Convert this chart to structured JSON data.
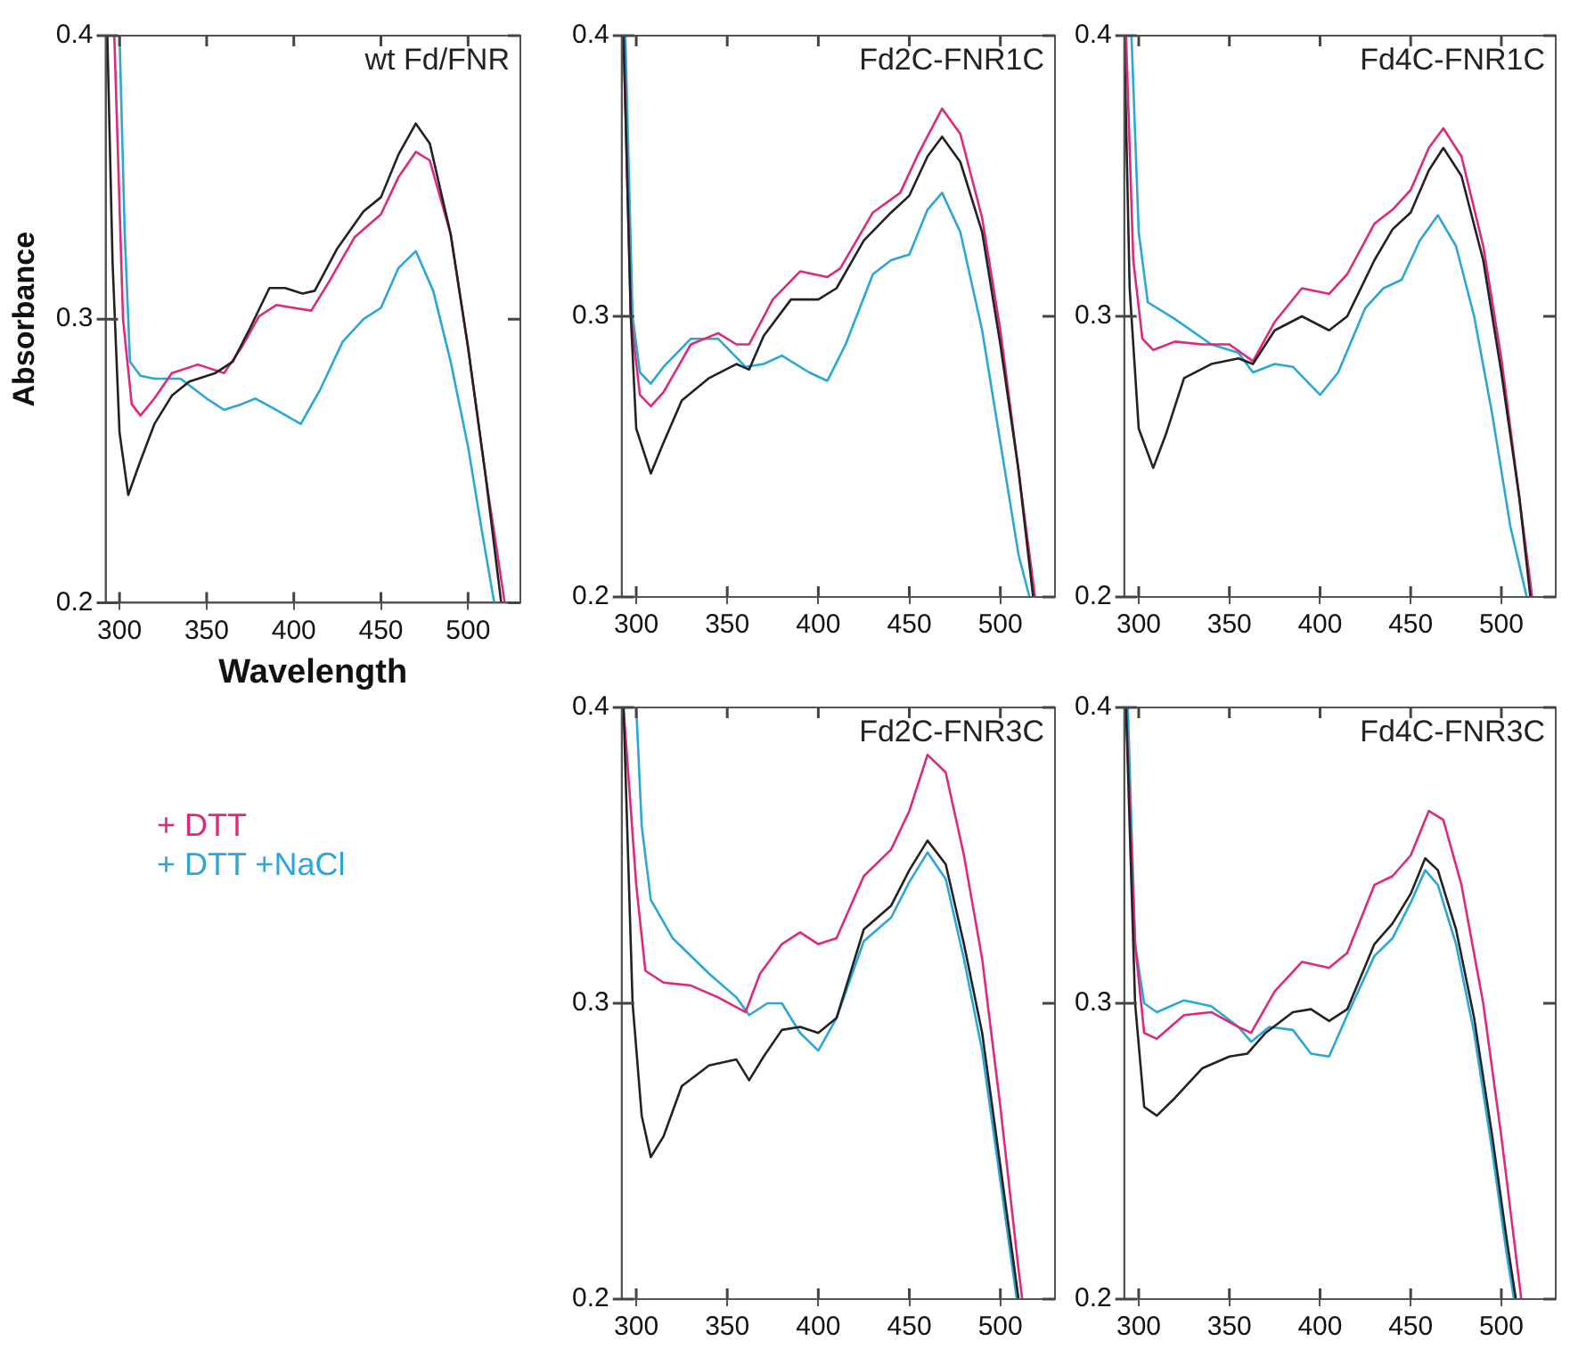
{
  "chart_data": [
    {
      "type": "line",
      "title": "wt Fd/FNR",
      "xlabel": "Wavelength",
      "ylabel": "Absorbance",
      "xlim": [
        292,
        530
      ],
      "xticks": [
        300,
        350,
        400,
        450,
        500
      ],
      "ylim": [
        0.2,
        0.4
      ],
      "yticks": [
        0.2,
        0.3,
        0.4
      ],
      "grid": false,
      "legend": "bottom",
      "series": [
        {
          "color": "#222222",
          "x": [
            293,
            296,
            300,
            305,
            312,
            320,
            330,
            340,
            355,
            365,
            375,
            386,
            395,
            405,
            412,
            425,
            440,
            450,
            460,
            470,
            478,
            490,
            500,
            510,
            519
          ],
          "values": [
            0.4,
            0.32,
            0.26,
            0.238,
            0.25,
            0.263,
            0.273,
            0.278,
            0.281,
            0.285,
            0.297,
            0.311,
            0.311,
            0.309,
            0.31,
            0.325,
            0.338,
            0.343,
            0.358,
            0.369,
            0.362,
            0.33,
            0.29,
            0.245,
            0.2
          ]
        },
        {
          "name": "+ DTT",
          "color": "#e0287a",
          "x": [
            297,
            302,
            307,
            312,
            320,
            330,
            345,
            360,
            370,
            380,
            390,
            400,
            410,
            420,
            435,
            450,
            460,
            470,
            478,
            490,
            500,
            510,
            521
          ],
          "values": [
            0.4,
            0.3,
            0.27,
            0.266,
            0.272,
            0.281,
            0.284,
            0.281,
            0.29,
            0.301,
            0.305,
            0.304,
            0.303,
            0.313,
            0.329,
            0.337,
            0.35,
            0.359,
            0.356,
            0.33,
            0.29,
            0.245,
            0.2
          ]
        },
        {
          "name": "+ DTT +NaCl",
          "color": "#2aa6d8",
          "x": [
            300,
            303,
            306,
            312,
            320,
            335,
            350,
            360,
            370,
            378,
            390,
            404,
            415,
            428,
            440,
            450,
            460,
            470,
            480,
            490,
            500,
            508,
            515
          ],
          "values": [
            0.4,
            0.33,
            0.285,
            0.28,
            0.279,
            0.279,
            0.272,
            0.268,
            0.27,
            0.272,
            0.268,
            0.263,
            0.275,
            0.292,
            0.3,
            0.304,
            0.318,
            0.324,
            0.31,
            0.285,
            0.255,
            0.225,
            0.2
          ]
        }
      ]
    },
    {
      "type": "line",
      "title": "Fd2C-FNR1C",
      "xlim": [
        292,
        530
      ],
      "xticks": [
        300,
        350,
        400,
        450,
        500
      ],
      "ylim": [
        0.2,
        0.4
      ],
      "yticks": [
        0.2,
        0.3,
        0.4
      ],
      "grid": false,
      "series": [
        {
          "color": "#222222",
          "x": [
            293,
            297,
            300,
            308,
            315,
            325,
            340,
            355,
            362,
            370,
            385,
            400,
            410,
            425,
            440,
            450,
            460,
            468,
            478,
            490,
            500,
            510,
            518
          ],
          "values": [
            0.4,
            0.3,
            0.26,
            0.244,
            0.255,
            0.27,
            0.278,
            0.283,
            0.281,
            0.293,
            0.306,
            0.306,
            0.31,
            0.327,
            0.337,
            0.343,
            0.357,
            0.364,
            0.355,
            0.33,
            0.29,
            0.245,
            0.2
          ]
        },
        {
          "color": "#e0287a",
          "x": [
            293,
            297,
            302,
            308,
            315,
            330,
            345,
            355,
            362,
            375,
            390,
            405,
            412,
            430,
            445,
            455,
            468,
            478,
            490,
            500,
            510,
            519
          ],
          "values": [
            0.4,
            0.3,
            0.272,
            0.268,
            0.273,
            0.29,
            0.294,
            0.29,
            0.29,
            0.306,
            0.316,
            0.314,
            0.317,
            0.337,
            0.344,
            0.358,
            0.374,
            0.365,
            0.335,
            0.295,
            0.245,
            0.2
          ]
        },
        {
          "color": "#2aa6d8",
          "x": [
            294,
            298,
            302,
            308,
            315,
            330,
            345,
            360,
            370,
            380,
            395,
            405,
            415,
            430,
            440,
            450,
            460,
            468,
            478,
            490,
            500,
            510,
            516
          ],
          "values": [
            0.4,
            0.3,
            0.28,
            0.276,
            0.282,
            0.292,
            0.292,
            0.282,
            0.283,
            0.286,
            0.28,
            0.277,
            0.29,
            0.315,
            0.32,
            0.322,
            0.338,
            0.344,
            0.33,
            0.295,
            0.255,
            0.215,
            0.2
          ]
        }
      ]
    },
    {
      "type": "line",
      "title": "Fd4C-FNR1C",
      "xlim": [
        292,
        530
      ],
      "xticks": [
        300,
        350,
        400,
        450,
        500
      ],
      "ylim": [
        0.2,
        0.4
      ],
      "yticks": [
        0.2,
        0.3,
        0.4
      ],
      "grid": false,
      "series": [
        {
          "color": "#222222",
          "x": [
            292,
            295,
            300,
            308,
            315,
            325,
            340,
            355,
            363,
            375,
            390,
            405,
            415,
            430,
            440,
            450,
            460,
            468,
            478,
            490,
            500,
            510,
            516
          ],
          "values": [
            0.4,
            0.31,
            0.26,
            0.246,
            0.258,
            0.278,
            0.283,
            0.285,
            0.283,
            0.295,
            0.3,
            0.295,
            0.3,
            0.32,
            0.331,
            0.337,
            0.352,
            0.36,
            0.35,
            0.32,
            0.28,
            0.235,
            0.2
          ]
        },
        {
          "color": "#e0287a",
          "x": [
            293,
            297,
            302,
            308,
            320,
            335,
            350,
            363,
            375,
            390,
            405,
            415,
            430,
            440,
            450,
            460,
            468,
            478,
            490,
            500,
            510,
            517
          ],
          "values": [
            0.4,
            0.32,
            0.292,
            0.288,
            0.291,
            0.29,
            0.29,
            0.284,
            0.298,
            0.31,
            0.308,
            0.315,
            0.333,
            0.338,
            0.345,
            0.36,
            0.367,
            0.357,
            0.325,
            0.285,
            0.235,
            0.2
          ]
        },
        {
          "color": "#2aa6d8",
          "x": [
            296,
            300,
            305,
            320,
            340,
            355,
            363,
            375,
            385,
            400,
            410,
            425,
            435,
            445,
            455,
            465,
            475,
            485,
            495,
            505,
            514
          ],
          "values": [
            0.4,
            0.33,
            0.305,
            0.299,
            0.29,
            0.287,
            0.28,
            0.283,
            0.282,
            0.272,
            0.28,
            0.303,
            0.31,
            0.313,
            0.327,
            0.336,
            0.325,
            0.3,
            0.265,
            0.225,
            0.2
          ]
        }
      ]
    },
    {
      "type": "line",
      "title": "Fd2C-FNR3C",
      "xlim": [
        292,
        530
      ],
      "xticks": [
        300,
        350,
        400,
        450,
        500
      ],
      "ylim": [
        0.2,
        0.4
      ],
      "yticks": [
        0.2,
        0.3,
        0.4
      ],
      "grid": false,
      "series": [
        {
          "color": "#222222",
          "x": [
            293,
            298,
            303,
            308,
            315,
            325,
            340,
            355,
            362,
            370,
            380,
            390,
            400,
            410,
            425,
            440,
            450,
            460,
            470,
            480,
            490,
            500,
            510
          ],
          "values": [
            0.4,
            0.3,
            0.262,
            0.248,
            0.255,
            0.272,
            0.279,
            0.281,
            0.274,
            0.282,
            0.291,
            0.292,
            0.29,
            0.295,
            0.325,
            0.333,
            0.345,
            0.355,
            0.347,
            0.32,
            0.29,
            0.245,
            0.2
          ]
        },
        {
          "color": "#e0287a",
          "x": [
            293,
            300,
            305,
            315,
            330,
            345,
            360,
            368,
            380,
            390,
            400,
            410,
            425,
            440,
            450,
            460,
            470,
            480,
            490,
            500,
            510,
            512
          ],
          "values": [
            0.4,
            0.34,
            0.311,
            0.307,
            0.306,
            0.302,
            0.297,
            0.31,
            0.32,
            0.324,
            0.32,
            0.322,
            0.343,
            0.352,
            0.365,
            0.384,
            0.378,
            0.35,
            0.315,
            0.265,
            0.21,
            0.2
          ]
        },
        {
          "color": "#2aa6d8",
          "x": [
            300,
            303,
            308,
            320,
            340,
            355,
            362,
            372,
            380,
            390,
            400,
            410,
            425,
            440,
            450,
            460,
            470,
            480,
            490,
            500,
            509
          ],
          "values": [
            0.4,
            0.36,
            0.335,
            0.322,
            0.31,
            0.302,
            0.296,
            0.3,
            0.3,
            0.29,
            0.284,
            0.295,
            0.321,
            0.329,
            0.341,
            0.351,
            0.342,
            0.315,
            0.284,
            0.24,
            0.2
          ]
        }
      ]
    },
    {
      "type": "line",
      "title": "Fd4C-FNR3C",
      "xlim": [
        292,
        530
      ],
      "xticks": [
        300,
        350,
        400,
        450,
        500
      ],
      "ylim": [
        0.2,
        0.4
      ],
      "yticks": [
        0.2,
        0.3,
        0.4
      ],
      "grid": false,
      "series": [
        {
          "color": "#222222",
          "x": [
            293,
            298,
            303,
            310,
            320,
            335,
            350,
            360,
            370,
            385,
            395,
            405,
            415,
            430,
            440,
            450,
            458,
            465,
            475,
            485,
            495,
            503,
            508
          ],
          "values": [
            0.4,
            0.3,
            0.265,
            0.262,
            0.268,
            0.278,
            0.282,
            0.283,
            0.29,
            0.297,
            0.298,
            0.294,
            0.298,
            0.32,
            0.327,
            0.337,
            0.349,
            0.345,
            0.325,
            0.295,
            0.255,
            0.22,
            0.2
          ]
        },
        {
          "color": "#e0287a",
          "x": [
            293,
            298,
            303,
            310,
            325,
            340,
            355,
            362,
            375,
            390,
            405,
            415,
            430,
            440,
            450,
            460,
            468,
            478,
            490,
            500,
            510,
            511
          ],
          "values": [
            0.4,
            0.32,
            0.29,
            0.288,
            0.296,
            0.297,
            0.292,
            0.29,
            0.304,
            0.314,
            0.312,
            0.317,
            0.34,
            0.343,
            0.35,
            0.365,
            0.362,
            0.34,
            0.3,
            0.255,
            0.205,
            0.2
          ]
        },
        {
          "color": "#2aa6d8",
          "x": [
            294,
            298,
            303,
            310,
            325,
            340,
            355,
            362,
            372,
            385,
            395,
            405,
            415,
            430,
            440,
            450,
            458,
            465,
            475,
            485,
            495,
            503,
            507
          ],
          "values": [
            0.4,
            0.32,
            0.3,
            0.297,
            0.301,
            0.299,
            0.292,
            0.287,
            0.292,
            0.291,
            0.283,
            0.282,
            0.296,
            0.316,
            0.322,
            0.334,
            0.345,
            0.34,
            0.32,
            0.29,
            0.25,
            0.215,
            0.2
          ]
        }
      ]
    }
  ]
}
